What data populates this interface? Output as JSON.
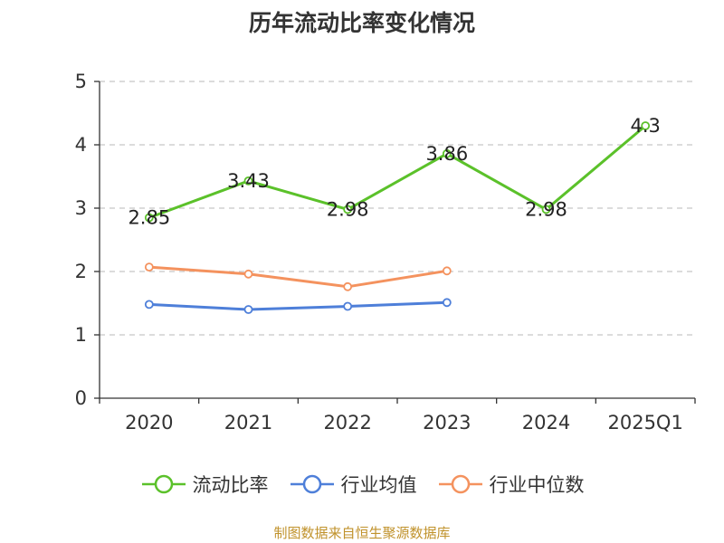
{
  "title": "历年流动比率变化情况",
  "source": "制图数据来自恒生聚源数据库",
  "colors": {
    "axis": "#333333",
    "grid": "#c8c8c8"
  },
  "chart_data": {
    "type": "line",
    "title": "历年流动比率变化情况",
    "categories": [
      "2020",
      "2021",
      "2022",
      "2023",
      "2024",
      "2025Q1"
    ],
    "ylim": [
      0,
      5
    ],
    "yticks": [
      0,
      1,
      2,
      3,
      4,
      5
    ],
    "grid": true,
    "legend_position": "bottom",
    "series": [
      {
        "name": "流动比率",
        "color": "#5bc12a",
        "values": [
          2.85,
          3.43,
          2.98,
          3.86,
          2.98,
          4.3
        ],
        "labels": [
          "2.85",
          "3.43",
          "2.98",
          "3.86",
          "2.98",
          "4.3"
        ]
      },
      {
        "name": "行业均值",
        "color": "#4e7fd9",
        "values": [
          1.48,
          1.4,
          1.45,
          1.51,
          null,
          null
        ]
      },
      {
        "name": "行业中位数",
        "color": "#f4925e",
        "values": [
          2.07,
          1.96,
          1.76,
          2.01,
          null,
          null
        ]
      }
    ]
  }
}
